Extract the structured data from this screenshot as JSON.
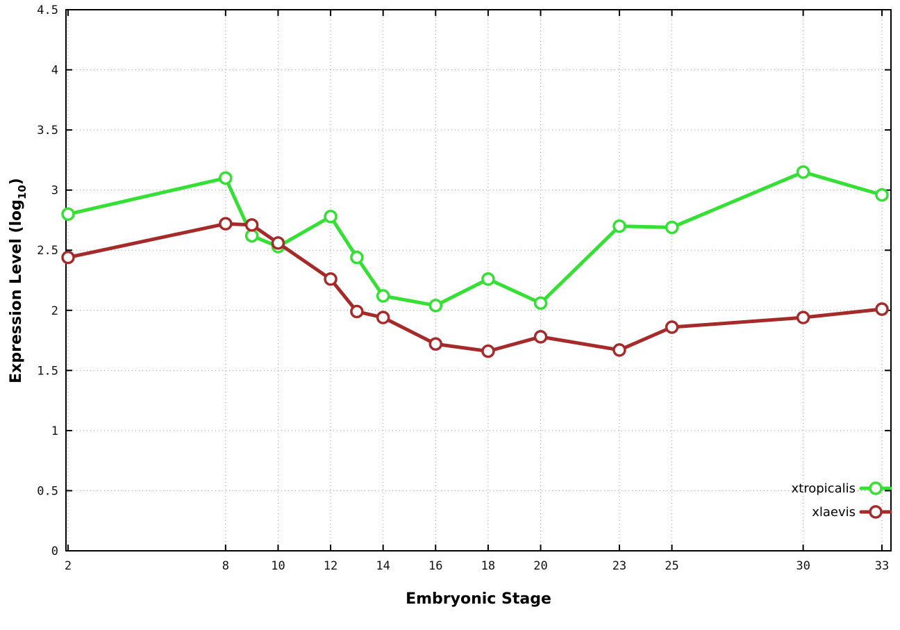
{
  "chart_data": {
    "type": "line",
    "title": "",
    "xlabel": "Embryonic Stage",
    "ylabel": "Expression Level (log10)",
    "ylabel_parts": {
      "pre": "Expression Level (log",
      "sub": "10",
      "post": ")"
    },
    "x": [
      2,
      8,
      9,
      10,
      12,
      13,
      14,
      16,
      18,
      20,
      23,
      25,
      30,
      33
    ],
    "xlim": [
      2,
      33
    ],
    "ylim": [
      0,
      4.5
    ],
    "xticks": [
      2,
      8,
      10,
      12,
      14,
      16,
      18,
      20,
      23,
      25,
      30,
      33
    ],
    "xtick_labels": [
      "2",
      "8",
      "10",
      "12",
      "14",
      "16",
      "18",
      "20",
      "23",
      "25",
      "30",
      "33"
    ],
    "yticks": [
      0,
      0.5,
      1,
      1.5,
      2,
      2.5,
      3,
      3.5,
      4,
      4.5
    ],
    "ytick_labels": [
      "0",
      "0.5",
      "1",
      "1.5",
      "2",
      "2.5",
      "3",
      "3.5",
      "4",
      "4.5"
    ],
    "grid": true,
    "legend_position": "bottom-right",
    "series": [
      {
        "name": "xtropicalis",
        "color": "#33e033",
        "values": [
          2.8,
          3.1,
          2.62,
          2.53,
          2.78,
          2.44,
          2.12,
          2.04,
          2.26,
          2.06,
          2.7,
          2.69,
          3.15,
          2.96
        ]
      },
      {
        "name": "xlaevis",
        "color": "#a52a2a",
        "values": [
          2.44,
          2.72,
          2.71,
          2.56,
          2.26,
          1.99,
          1.94,
          1.72,
          1.66,
          1.78,
          1.67,
          1.86,
          1.94,
          2.01
        ]
      }
    ]
  },
  "style": {
    "grid_color": "#9a9a9a",
    "border_color": "#000000",
    "marker_fill": "#ffffff",
    "background": "#ffffff"
  }
}
